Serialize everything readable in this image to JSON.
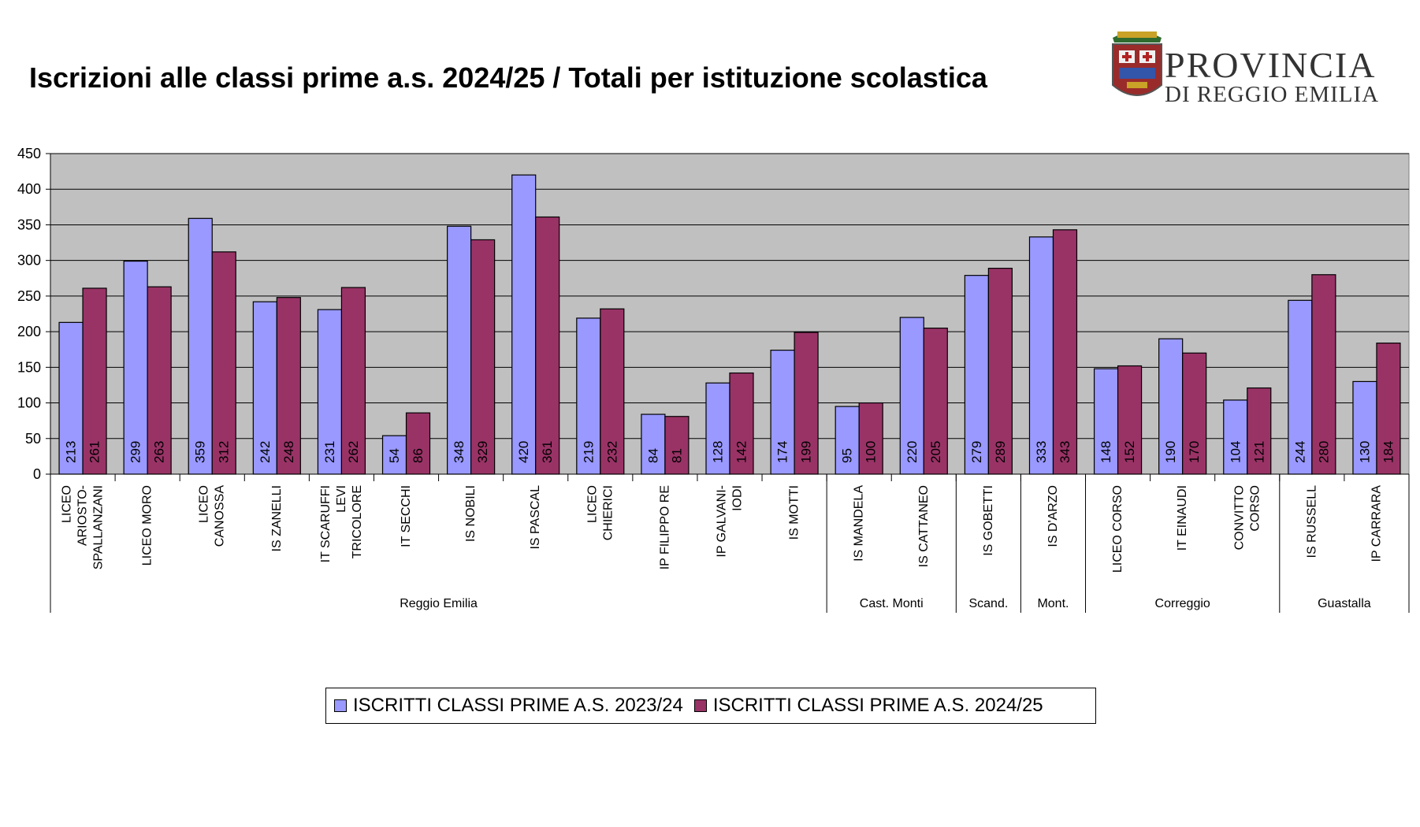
{
  "title": "Iscrizioni alle classi prime a.s. 2024/25 / Totali per istituzione scolastica",
  "logo": {
    "line1": "PROVINCIA",
    "line2": "DI REGGIO EMILIA"
  },
  "colors": {
    "series1": "#9999ff",
    "series2": "#993366",
    "plot_bg": "#c0c0c0"
  },
  "chart_data": {
    "type": "bar",
    "title": "Iscrizioni alle classi prime a.s. 2024/25 / Totali per istituzione scolastica",
    "ylim": [
      0,
      450
    ],
    "yticks": [
      0,
      50,
      100,
      150,
      200,
      250,
      300,
      350,
      400,
      450
    ],
    "grid": true,
    "legend_position": "bottom",
    "categories": [
      [
        "LICEO",
        "ARIOSTO-",
        "SPALLANZANI"
      ],
      [
        "LICEO MORO"
      ],
      [
        "LICEO",
        "CANOSSA"
      ],
      [
        "IS ZANELLI"
      ],
      [
        "IT SCARUFFI",
        "LEVI",
        "TRICOLORE"
      ],
      [
        "IT SECCHI"
      ],
      [
        "IS NOBILI"
      ],
      [
        "IS PASCAL"
      ],
      [
        "LICEO",
        "CHIERICI"
      ],
      [
        "IP FILIPPO RE"
      ],
      [
        "IP GALVANI-",
        "IODI"
      ],
      [
        "IS MOTTI"
      ],
      [
        "IS MANDELA"
      ],
      [
        "IS CATTANEO"
      ],
      [
        "IS GOBETTI"
      ],
      [
        "IS D'ARZO"
      ],
      [
        "LICEO CORSO"
      ],
      [
        "IT EINAUDI"
      ],
      [
        "CONVITTO",
        "CORSO"
      ],
      [
        "IS RUSSELL"
      ],
      [
        "IP CARRARA"
      ]
    ],
    "groups": [
      {
        "name": "Reggio Emilia",
        "count": 12
      },
      {
        "name": "Cast. Monti",
        "count": 2
      },
      {
        "name": "Scand.",
        "count": 1
      },
      {
        "name": "Mont.",
        "count": 1
      },
      {
        "name": "Correggio",
        "count": 3
      },
      {
        "name": "Guastalla",
        "count": 2
      }
    ],
    "series": [
      {
        "name": "ISCRITTI CLASSI PRIME A.S. 2023/24",
        "color": "#9999ff",
        "values": [
          213,
          299,
          359,
          242,
          231,
          54,
          348,
          420,
          219,
          84,
          128,
          174,
          95,
          220,
          279,
          333,
          148,
          190,
          104,
          244,
          130
        ]
      },
      {
        "name": "ISCRITTI CLASSI PRIME A.S. 2024/25",
        "color": "#993366",
        "values": [
          261,
          263,
          312,
          248,
          262,
          86,
          329,
          361,
          232,
          81,
          142,
          199,
          100,
          205,
          289,
          343,
          152,
          170,
          121,
          280,
          184
        ]
      }
    ]
  }
}
